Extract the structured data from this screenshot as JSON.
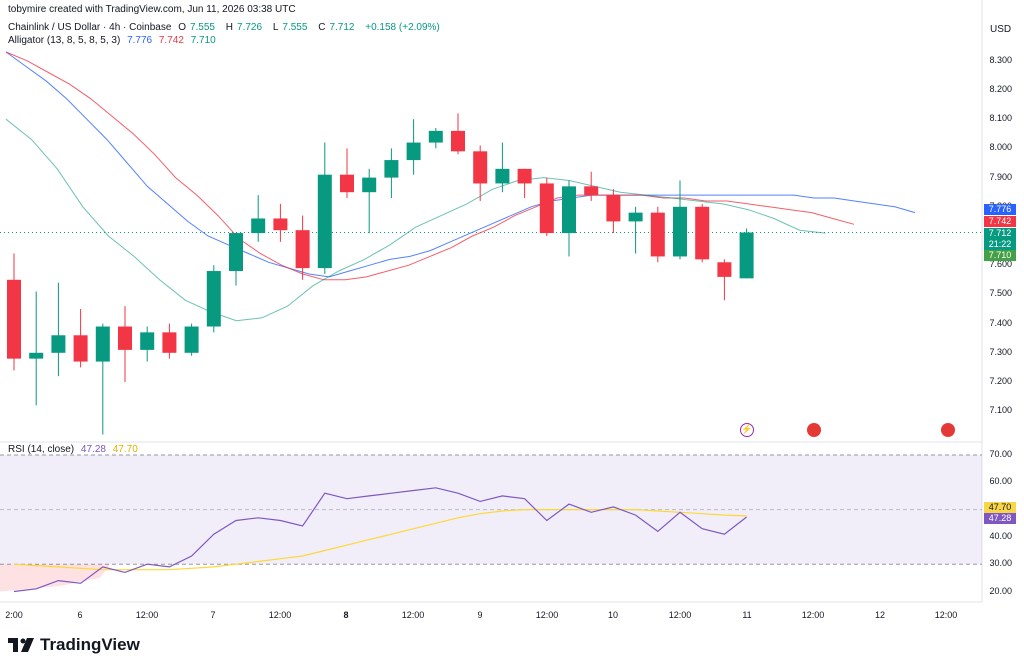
{
  "watermark": "tobymire created with TradingView.com, Jun 11, 2026 03:38 UTC",
  "symbol": {
    "name": "Chainlink / US Dollar · 4h · Coinbase",
    "o_label": "O",
    "o": "7.555",
    "h_label": "H",
    "h": "7.726",
    "l_label": "L",
    "l": "7.555",
    "c_label": "C",
    "c": "7.712",
    "change": "+0.158 (+2.09%)"
  },
  "alligator": {
    "label": "Alligator (13, 8, 5, 8, 5, 3)",
    "jaw": "7.776",
    "teeth": "7.742",
    "lips": "7.710"
  },
  "rsi": {
    "label": "RSI (14, close)",
    "value": "47.28",
    "ma": "47.70"
  },
  "price_axis": {
    "currency": "USD",
    "ticks": [
      "8.300",
      "8.200",
      "8.100",
      "8.000",
      "7.900",
      "7.800",
      "7.700",
      "7.600",
      "7.500",
      "7.400",
      "7.300",
      "7.200",
      "7.100"
    ],
    "tag_jaw": "7.776",
    "tag_teeth": "7.742",
    "tag_price": "7.712",
    "tag_countdown": "21:22",
    "tag_lips": "7.710"
  },
  "rsi_axis": {
    "ticks": [
      "70.00",
      "60.00",
      "40.00",
      "30.00",
      "20.00"
    ],
    "tag_ma": "47.70",
    "tag_rsi": "47.28"
  },
  "time_axis": [
    "2:00",
    "6",
    "12:00",
    "7",
    "12:00",
    "8",
    "12:00",
    "9",
    "12:00",
    "10",
    "12:00",
    "11",
    "12:00",
    "12",
    "12:00"
  ],
  "brand": "TradingView",
  "colors": {
    "up": "#089981",
    "down": "#f23645",
    "jaw": "#2962ff",
    "teeth": "#f23645",
    "lips": "#089981",
    "rsi": "#7e57c2",
    "rsi_ma": "#fdd835"
  },
  "chart_data": {
    "type": "candlestick",
    "timeframe": "4h",
    "candles": [
      {
        "o": 7.55,
        "h": 7.64,
        "l": 7.24,
        "c": 7.28
      },
      {
        "o": 7.28,
        "h": 7.51,
        "l": 7.12,
        "c": 7.3
      },
      {
        "o": 7.3,
        "h": 7.54,
        "l": 7.22,
        "c": 7.36
      },
      {
        "o": 7.36,
        "h": 7.45,
        "l": 7.25,
        "c": 7.27
      },
      {
        "o": 7.27,
        "h": 7.4,
        "l": 7.02,
        "c": 7.39
      },
      {
        "o": 7.39,
        "h": 7.46,
        "l": 7.2,
        "c": 7.31
      },
      {
        "o": 7.31,
        "h": 7.39,
        "l": 7.27,
        "c": 7.37
      },
      {
        "o": 7.37,
        "h": 7.4,
        "l": 7.28,
        "c": 7.3
      },
      {
        "o": 7.3,
        "h": 7.4,
        "l": 7.29,
        "c": 7.39
      },
      {
        "o": 7.39,
        "h": 7.6,
        "l": 7.37,
        "c": 7.58
      },
      {
        "o": 7.58,
        "h": 7.71,
        "l": 7.53,
        "c": 7.71
      },
      {
        "o": 7.71,
        "h": 7.84,
        "l": 7.68,
        "c": 7.76
      },
      {
        "o": 7.76,
        "h": 7.81,
        "l": 7.68,
        "c": 7.72
      },
      {
        "o": 7.72,
        "h": 7.77,
        "l": 7.55,
        "c": 7.59
      },
      {
        "o": 7.59,
        "h": 8.02,
        "l": 7.57,
        "c": 7.91
      },
      {
        "o": 7.91,
        "h": 8.0,
        "l": 7.83,
        "c": 7.85
      },
      {
        "o": 7.85,
        "h": 7.93,
        "l": 7.71,
        "c": 7.9
      },
      {
        "o": 7.9,
        "h": 8.0,
        "l": 7.83,
        "c": 7.96
      },
      {
        "o": 7.96,
        "h": 8.1,
        "l": 7.91,
        "c": 8.02
      },
      {
        "o": 8.02,
        "h": 8.07,
        "l": 8.0,
        "c": 8.06
      },
      {
        "o": 8.06,
        "h": 8.12,
        "l": 7.98,
        "c": 7.99
      },
      {
        "o": 7.99,
        "h": 8.01,
        "l": 7.82,
        "c": 7.88
      },
      {
        "o": 7.88,
        "h": 8.02,
        "l": 7.85,
        "c": 7.93
      },
      {
        "o": 7.93,
        "h": 7.93,
        "l": 7.83,
        "c": 7.88
      },
      {
        "o": 7.88,
        "h": 7.9,
        "l": 7.7,
        "c": 7.71
      },
      {
        "o": 7.71,
        "h": 7.89,
        "l": 7.63,
        "c": 7.87
      },
      {
        "o": 7.87,
        "h": 7.92,
        "l": 7.82,
        "c": 7.84
      },
      {
        "o": 7.84,
        "h": 7.86,
        "l": 7.71,
        "c": 7.75
      },
      {
        "o": 7.75,
        "h": 7.8,
        "l": 7.64,
        "c": 7.78
      },
      {
        "o": 7.78,
        "h": 7.8,
        "l": 7.61,
        "c": 7.63
      },
      {
        "o": 7.63,
        "h": 7.89,
        "l": 7.62,
        "c": 7.8
      },
      {
        "o": 7.8,
        "h": 7.81,
        "l": 7.61,
        "c": 7.62
      },
      {
        "o": 7.61,
        "h": 7.62,
        "l": 7.48,
        "c": 7.56
      },
      {
        "o": 7.555,
        "h": 7.726,
        "l": 7.555,
        "c": 7.712
      }
    ],
    "jaw": [
      8.33,
      8.28,
      8.23,
      8.17,
      8.1,
      8.03,
      7.95,
      7.87,
      7.81,
      7.75,
      7.7,
      7.67,
      7.64,
      7.61,
      7.59,
      7.57,
      7.56,
      7.58,
      7.6,
      7.62,
      7.63,
      7.65,
      7.68,
      7.71,
      7.74,
      7.77,
      7.8,
      7.82,
      7.83,
      7.84,
      7.84,
      7.84,
      7.84,
      7.84,
      7.84,
      7.84,
      7.84,
      7.84,
      7.84,
      7.84,
      7.83,
      7.83,
      7.82,
      7.81,
      7.8,
      7.78
    ],
    "teeth": [
      8.33,
      8.3,
      8.26,
      8.22,
      8.17,
      8.11,
      8.05,
      7.98,
      7.9,
      7.84,
      7.77,
      7.69,
      7.64,
      7.6,
      7.57,
      7.55,
      7.55,
      7.56,
      7.58,
      7.6,
      7.63,
      7.66,
      7.7,
      7.73,
      7.77,
      7.8,
      7.83,
      7.84,
      7.84,
      7.84,
      7.84,
      7.83,
      7.83,
      7.82,
      7.82,
      7.81,
      7.8,
      7.79,
      7.78,
      7.76,
      7.74
    ],
    "lips": [
      8.1,
      8.03,
      7.93,
      7.8,
      7.7,
      7.63,
      7.55,
      7.48,
      7.44,
      7.41,
      7.42,
      7.46,
      7.53,
      7.58,
      7.62,
      7.67,
      7.73,
      7.77,
      7.81,
      7.86,
      7.89,
      7.9,
      7.89,
      7.87,
      7.85,
      7.84,
      7.83,
      7.82,
      7.81,
      7.79,
      7.76,
      7.72,
      7.71
    ],
    "rsi": [
      20,
      21,
      24,
      23,
      29,
      27,
      30,
      29,
      33,
      41,
      46,
      47,
      46,
      44,
      56,
      54,
      55,
      56,
      57,
      58,
      56,
      53,
      55,
      54,
      46,
      52,
      49,
      51,
      48,
      42,
      49,
      43,
      41,
      47.28
    ],
    "rsi_ma": [
      30,
      29.5,
      29,
      28.5,
      28,
      28,
      28,
      28,
      28.5,
      29,
      30,
      31,
      32,
      33,
      35,
      37,
      39,
      41,
      43,
      45,
      47,
      48.5,
      49.5,
      50,
      50,
      50,
      50,
      50,
      50,
      49.5,
      49,
      48.5,
      48,
      47.7
    ],
    "price_range": [
      7.0,
      8.4
    ],
    "rsi_range": [
      15,
      75
    ],
    "rsi_bands": [
      70,
      30
    ]
  }
}
